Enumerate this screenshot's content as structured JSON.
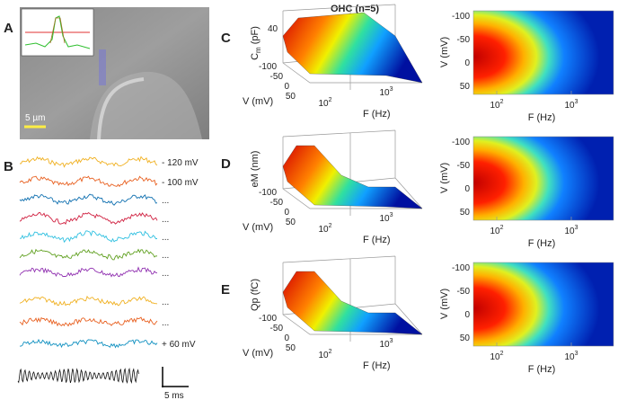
{
  "figure_title": "OHC (n=5)",
  "panel_a": {
    "label": "A",
    "scale_bar": "5 µm"
  },
  "panel_b": {
    "label": "B",
    "trace_labels": [
      "- 120 mV",
      "- 100 mV",
      "...",
      "...",
      "...",
      "...",
      "...",
      "...",
      "...",
      "+ 60 mV"
    ],
    "scale_bar": "5 ms"
  },
  "axes": {
    "v_ticks": [
      "-100",
      "-50",
      "0",
      "50"
    ],
    "f_ticks": [
      {
        "base": "10",
        "exp": "2"
      },
      {
        "base": "10",
        "exp": "3"
      }
    ],
    "v_label": "V (mV)",
    "f_label": "F (Hz)"
  },
  "rows": [
    {
      "label": "C",
      "z_label": "C",
      "z_sub": "m",
      "z_unit": "(pF)",
      "z_tick": "40"
    },
    {
      "label": "D",
      "z_label": "eM (nm)"
    },
    {
      "label": "E",
      "z_label": "Qp (fC)"
    }
  ]
}
